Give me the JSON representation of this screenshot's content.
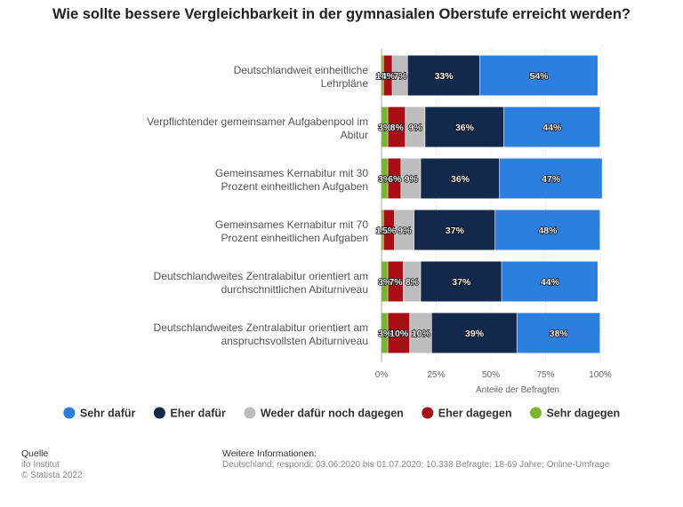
{
  "chart_data": {
    "type": "bar",
    "orientation": "horizontal",
    "stacked": true,
    "title": "Wie sollte bessere Vergleichbarkeit in der gymnasialen Oberstufe erreicht werden?",
    "xlabel": "Anteile der Befragten",
    "xlim": [
      0,
      100
    ],
    "xticks": [
      "0%",
      "25%",
      "50%",
      "75%",
      "100%"
    ],
    "grid": true,
    "legend_position": "bottom",
    "categories": [
      [
        "Deutschlandweit einheitliche",
        "Lehrpläne"
      ],
      [
        "Verpflichtender gemeinsamer Aufgabenpool im",
        "Abitur"
      ],
      [
        "Gemeinsames Kernabitur mit 30",
        "Prozent einheitlichen Aufgaben"
      ],
      [
        "Gemeinsames Kernabitur mit 70",
        "Prozent einheitlichen Aufgaben"
      ],
      [
        "Deutschlandweites Zentralabitur orientiert am",
        "durchschnittlichen Abiturniveau"
      ],
      [
        "Deutschlandweites Zentralabitur orientiert am",
        "anspruchsvollsten Abiturniveau"
      ]
    ],
    "series": [
      {
        "name": "Sehr dagegen",
        "color": "#7ab52e",
        "values": [
          1,
          3,
          3,
          1,
          3,
          3
        ],
        "labels": [
          "1%",
          "3%",
          "3%",
          "1%",
          "3%",
          "3%"
        ]
      },
      {
        "name": "Eher dagegen",
        "color": "#a50f15",
        "values": [
          4,
          8,
          6,
          5,
          7,
          10
        ],
        "labels": [
          "4%",
          "8%",
          "6%",
          "5%",
          "7%",
          "10%"
        ]
      },
      {
        "name": "Weder dafür noch dagegen",
        "color": "#bdbdbd",
        "values": [
          7,
          9,
          9,
          9,
          8,
          10
        ],
        "labels": [
          "7%",
          "9%",
          "9%",
          "9%",
          "8%",
          "10%"
        ]
      },
      {
        "name": "Eher dafür",
        "color": "#13294b",
        "values": [
          33,
          36,
          36,
          37,
          37,
          39
        ],
        "labels": [
          "33%",
          "36%",
          "36%",
          "37%",
          "37%",
          "39%"
        ]
      },
      {
        "name": "Sehr dafür",
        "color": "#2d7fdf",
        "values": [
          54,
          44,
          47,
          48,
          44,
          38
        ],
        "labels": [
          "54%",
          "44%",
          "47%",
          "48%",
          "44%",
          "38%"
        ]
      }
    ],
    "legend_order": [
      "Sehr dafür",
      "Eher dafür",
      "Weder dafür noch dagegen",
      "Eher dagegen",
      "Sehr dagegen"
    ]
  },
  "footer": {
    "source_heading": "Quelle",
    "source_lines": [
      "ifo Institut",
      "© Statista 2022"
    ],
    "info_heading": "Weitere Informationen:",
    "info_text": "Deutschland; respondi; 03.06.2020 bis 01.07.2020; 10.338 Befragte; 18-69 Jahre; Online-Umfrage"
  }
}
